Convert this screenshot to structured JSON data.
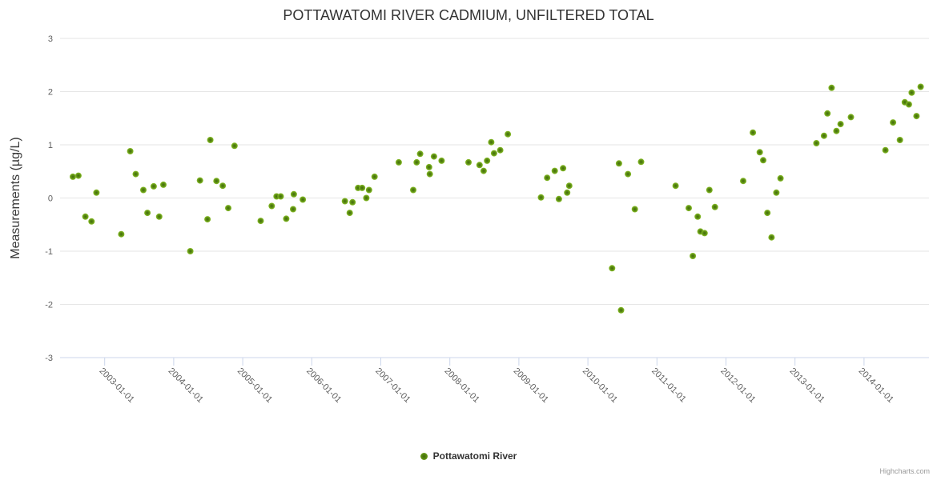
{
  "credits": "Highcharts.com",
  "colors": {
    "title_text": "#333333",
    "axis_label_text": "#606060",
    "gridline": "#e6e6e6",
    "axis_line": "#ccd6eb",
    "marker_outer": "#8bc02a",
    "marker_inner": "#41690b",
    "credits_text": "#999999",
    "background": "#ffffff"
  },
  "chart_data": {
    "type": "scatter",
    "title": "POTTAWATOMI RIVER CADMIUM, UNFILTERED TOTAL",
    "xlabel": "",
    "ylabel": "Measurements (µg/L)",
    "ylim": [
      -3,
      3
    ],
    "xlim": [
      2002.35,
      2014.95
    ],
    "x_unit": "decimal-year (datetime axis, yearly ticks)",
    "grid": "horizontal-only",
    "legend_position": "bottom-center",
    "y_ticks": [
      {
        "value": 3,
        "label": "3"
      },
      {
        "value": 2,
        "label": "2"
      },
      {
        "value": 1,
        "label": "1"
      },
      {
        "value": 0,
        "label": "0"
      },
      {
        "value": -1,
        "label": "-1"
      },
      {
        "value": -2,
        "label": "-2"
      },
      {
        "value": -3,
        "label": "-3"
      }
    ],
    "x_ticks": [
      {
        "year": 2003,
        "label": "2003-01-01"
      },
      {
        "year": 2004,
        "label": "2004-01-01"
      },
      {
        "year": 2005,
        "label": "2005-01-01"
      },
      {
        "year": 2006,
        "label": "2006-01-01"
      },
      {
        "year": 2007,
        "label": "2007-01-01"
      },
      {
        "year": 2008,
        "label": "2008-01-01"
      },
      {
        "year": 2009,
        "label": "2009-01-01"
      },
      {
        "year": 2010,
        "label": "2010-01-01"
      },
      {
        "year": 2011,
        "label": "2011-01-01"
      },
      {
        "year": 2012,
        "label": "2012-01-01"
      },
      {
        "year": 2013,
        "label": "2013-01-01"
      },
      {
        "year": 2014,
        "label": "2014-01-01"
      }
    ],
    "series": [
      {
        "name": "Pottawatomi River",
        "points": [
          [
            2002.54,
            0.4
          ],
          [
            2002.62,
            0.42
          ],
          [
            2002.88,
            0.1
          ],
          [
            2002.72,
            -0.35
          ],
          [
            2002.81,
            -0.44
          ],
          [
            2003.24,
            -0.68
          ],
          [
            2003.37,
            0.88
          ],
          [
            2003.45,
            0.45
          ],
          [
            2003.56,
            0.15
          ],
          [
            2003.62,
            -0.28
          ],
          [
            2003.71,
            0.22
          ],
          [
            2003.79,
            -0.35
          ],
          [
            2003.85,
            0.25
          ],
          [
            2004.24,
            -1.0
          ],
          [
            2004.38,
            0.33
          ],
          [
            2004.49,
            -0.4
          ],
          [
            2004.53,
            1.09
          ],
          [
            2004.62,
            0.32
          ],
          [
            2004.71,
            0.23
          ],
          [
            2004.79,
            -0.19
          ],
          [
            2004.88,
            0.98
          ],
          [
            2005.26,
            -0.43
          ],
          [
            2005.42,
            -0.15
          ],
          [
            2005.49,
            0.03
          ],
          [
            2005.55,
            0.03
          ],
          [
            2005.63,
            -0.39
          ],
          [
            2005.73,
            -0.21
          ],
          [
            2005.74,
            0.07
          ],
          [
            2005.87,
            -0.03
          ],
          [
            2006.48,
            -0.06
          ],
          [
            2006.55,
            -0.28
          ],
          [
            2006.59,
            -0.08
          ],
          [
            2006.67,
            0.19
          ],
          [
            2006.73,
            0.19
          ],
          [
            2006.79,
            0.0
          ],
          [
            2006.83,
            0.15
          ],
          [
            2006.91,
            0.4
          ],
          [
            2007.26,
            0.67
          ],
          [
            2007.47,
            0.15
          ],
          [
            2007.52,
            0.67
          ],
          [
            2007.57,
            0.83
          ],
          [
            2007.7,
            0.58
          ],
          [
            2007.71,
            0.45
          ],
          [
            2007.77,
            0.78
          ],
          [
            2007.88,
            0.7
          ],
          [
            2008.27,
            0.67
          ],
          [
            2008.43,
            0.62
          ],
          [
            2008.49,
            0.51
          ],
          [
            2008.54,
            0.7
          ],
          [
            2008.6,
            1.05
          ],
          [
            2008.64,
            0.84
          ],
          [
            2008.73,
            0.9
          ],
          [
            2008.84,
            1.2
          ],
          [
            2009.32,
            0.01
          ],
          [
            2009.41,
            0.38
          ],
          [
            2009.52,
            0.51
          ],
          [
            2009.58,
            -0.02
          ],
          [
            2009.64,
            0.56
          ],
          [
            2009.7,
            0.1
          ],
          [
            2009.73,
            0.23
          ],
          [
            2010.35,
            -1.32
          ],
          [
            2010.45,
            0.65
          ],
          [
            2010.48,
            -2.11
          ],
          [
            2010.58,
            0.45
          ],
          [
            2010.68,
            -0.21
          ],
          [
            2010.77,
            0.68
          ],
          [
            2011.27,
            0.23
          ],
          [
            2011.46,
            -0.19
          ],
          [
            2011.52,
            -1.09
          ],
          [
            2011.59,
            -0.35
          ],
          [
            2011.63,
            -0.63
          ],
          [
            2011.69,
            -0.66
          ],
          [
            2011.76,
            0.15
          ],
          [
            2011.84,
            -0.17
          ],
          [
            2012.25,
            0.32
          ],
          [
            2012.39,
            1.23
          ],
          [
            2012.49,
            0.86
          ],
          [
            2012.54,
            0.71
          ],
          [
            2012.6,
            -0.28
          ],
          [
            2012.66,
            -0.74
          ],
          [
            2012.73,
            0.1
          ],
          [
            2012.79,
            0.37
          ],
          [
            2013.31,
            1.03
          ],
          [
            2013.42,
            1.17
          ],
          [
            2013.47,
            1.59
          ],
          [
            2013.53,
            2.07
          ],
          [
            2013.6,
            1.26
          ],
          [
            2013.66,
            1.39
          ],
          [
            2013.81,
            1.52
          ],
          [
            2014.31,
            0.9
          ],
          [
            2014.42,
            1.42
          ],
          [
            2014.52,
            1.09
          ],
          [
            2014.59,
            1.8
          ],
          [
            2014.65,
            1.76
          ],
          [
            2014.69,
            1.98
          ],
          [
            2014.76,
            1.54
          ],
          [
            2014.82,
            2.09
          ]
        ]
      }
    ]
  }
}
